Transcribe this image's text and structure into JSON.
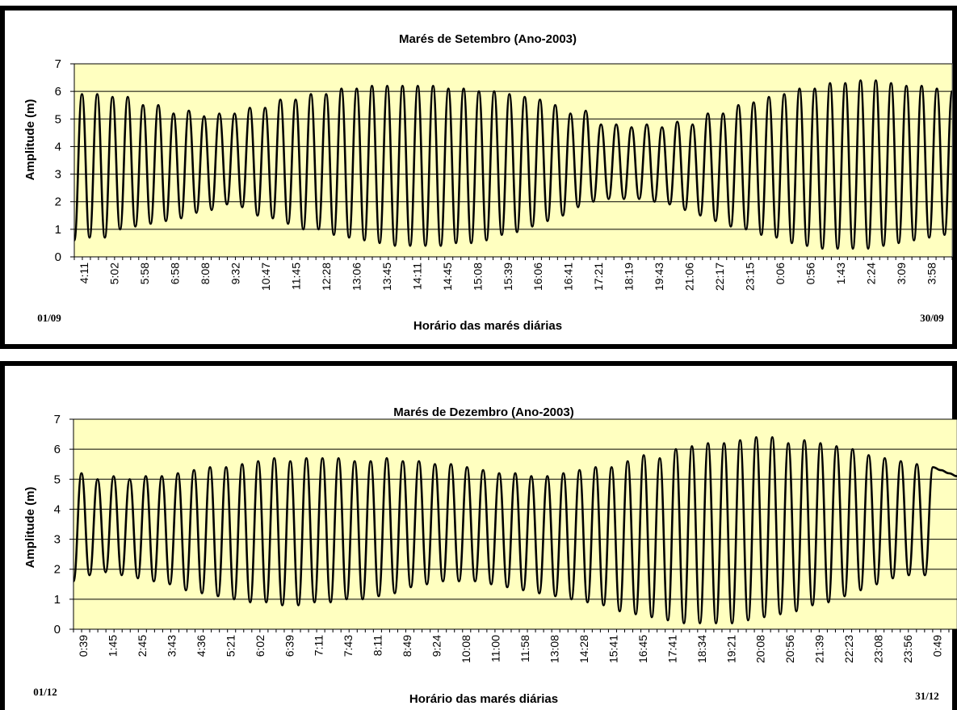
{
  "chart_data": [
    {
      "type": "line",
      "title": "Marés de Setembro (Ano-2003)",
      "xlabel": "Horário das marés diárias",
      "ylabel": "Amplitude (m)",
      "ylim": [
        0,
        7
      ],
      "yticks": [
        0,
        1,
        2,
        3,
        4,
        5,
        6,
        7
      ],
      "grid": "horizontal",
      "plot_background": "#FFFFC0",
      "line_color": "#000000",
      "start_date": "01/09",
      "end_date": "30/09",
      "x_tick_labels": [
        "4:11",
        "5:02",
        "5:58",
        "6:58",
        "8:08",
        "9:32",
        "10:47",
        "11:45",
        "12:28",
        "13:06",
        "13:45",
        "14:11",
        "14:45",
        "15:08",
        "15:39",
        "16:06",
        "16:41",
        "17:21",
        "18:19",
        "19:43",
        "21:06",
        "22:17",
        "23:15",
        "0:06",
        "0:56",
        "1:43",
        "2:24",
        "3:09",
        "3:58"
      ],
      "series": [
        {
          "high_tides": [
            5.9,
            5.9,
            5.8,
            5.8,
            5.5,
            5.5,
            5.2,
            5.3,
            5.1,
            5.2,
            5.2,
            5.4,
            5.4,
            5.7,
            5.7,
            5.9,
            5.9,
            6.1,
            6.1,
            6.2,
            6.2,
            6.2,
            6.2,
            6.2,
            6.1,
            6.1,
            6.0,
            6.0,
            5.9,
            5.8,
            5.7,
            5.5,
            5.2,
            5.3,
            4.8,
            4.8,
            4.7,
            4.8,
            4.7,
            4.9,
            4.8,
            5.2,
            5.2,
            5.5,
            5.6,
            5.8,
            5.9,
            6.1,
            6.1,
            6.3,
            6.3,
            6.4,
            6.4,
            6.3,
            6.2,
            6.2,
            6.1,
            6.0
          ],
          "low_tides": [
            0.6,
            0.7,
            0.7,
            1.0,
            1.1,
            1.2,
            1.3,
            1.4,
            1.6,
            1.7,
            1.9,
            1.8,
            1.5,
            1.4,
            1.2,
            1.0,
            1.0,
            0.8,
            0.7,
            0.6,
            0.5,
            0.4,
            0.4,
            0.4,
            0.4,
            0.5,
            0.5,
            0.6,
            0.8,
            0.9,
            1.1,
            1.3,
            1.5,
            1.8,
            2.0,
            2.1,
            2.1,
            2.1,
            2.0,
            1.9,
            1.7,
            1.5,
            1.3,
            1.1,
            1.0,
            0.8,
            0.7,
            0.5,
            0.4,
            0.3,
            0.3,
            0.3,
            0.3,
            0.4,
            0.5,
            0.6,
            0.7,
            0.8
          ]
        }
      ]
    },
    {
      "type": "line",
      "title": "Marés de Dezembro (Ano-2003)",
      "xlabel": "Horário das marés diárias",
      "ylabel": "Amplitude (m)",
      "ylim": [
        0,
        7
      ],
      "yticks": [
        0,
        1,
        2,
        3,
        4,
        5,
        6,
        7
      ],
      "grid": "horizontal",
      "plot_background": "#FFFFC0",
      "line_color": "#000000",
      "start_date": "01/12",
      "end_date": "31/12",
      "x_tick_labels": [
        "0:39",
        "1:45",
        "2:45",
        "3:43",
        "4:36",
        "5:21",
        "6:02",
        "6:39",
        "7:11",
        "7:43",
        "8:11",
        "8:49",
        "9:24",
        "10:08",
        "11:00",
        "11:58",
        "13:08",
        "14:28",
        "15:41",
        "16:45",
        "17:41",
        "18:34",
        "19:21",
        "20:08",
        "20:56",
        "21:39",
        "22:23",
        "23:08",
        "23:56",
        "0:49"
      ],
      "series": [
        {
          "high_tides": [
            5.2,
            5.0,
            5.1,
            5.0,
            5.1,
            5.1,
            5.2,
            5.3,
            5.4,
            5.4,
            5.5,
            5.6,
            5.7,
            5.6,
            5.7,
            5.7,
            5.7,
            5.6,
            5.6,
            5.7,
            5.6,
            5.6,
            5.5,
            5.5,
            5.4,
            5.3,
            5.2,
            5.2,
            5.1,
            5.1,
            5.2,
            5.3,
            5.4,
            5.4,
            5.6,
            5.8,
            5.7,
            6.0,
            6.1,
            6.2,
            6.2,
            6.3,
            6.4,
            6.4,
            6.2,
            6.3,
            6.2,
            6.1,
            6.0,
            5.8,
            5.7,
            5.6,
            5.5,
            5.4,
            5.3,
            5.2,
            5.1
          ],
          "low_tides": [
            1.6,
            1.8,
            1.9,
            1.8,
            1.7,
            1.6,
            1.5,
            1.3,
            1.2,
            1.1,
            1.0,
            0.9,
            0.9,
            0.8,
            0.8,
            0.9,
            0.9,
            1.0,
            1.0,
            1.1,
            1.2,
            1.4,
            1.5,
            1.6,
            1.6,
            1.6,
            1.5,
            1.4,
            1.3,
            1.2,
            1.1,
            1.0,
            0.9,
            0.8,
            0.6,
            0.5,
            0.4,
            0.3,
            0.2,
            0.2,
            0.2,
            0.2,
            0.3,
            0.4,
            0.5,
            0.6,
            0.8,
            0.9,
            1.1,
            1.3,
            1.5,
            1.7,
            1.8,
            1.8
          ]
        }
      ]
    }
  ]
}
